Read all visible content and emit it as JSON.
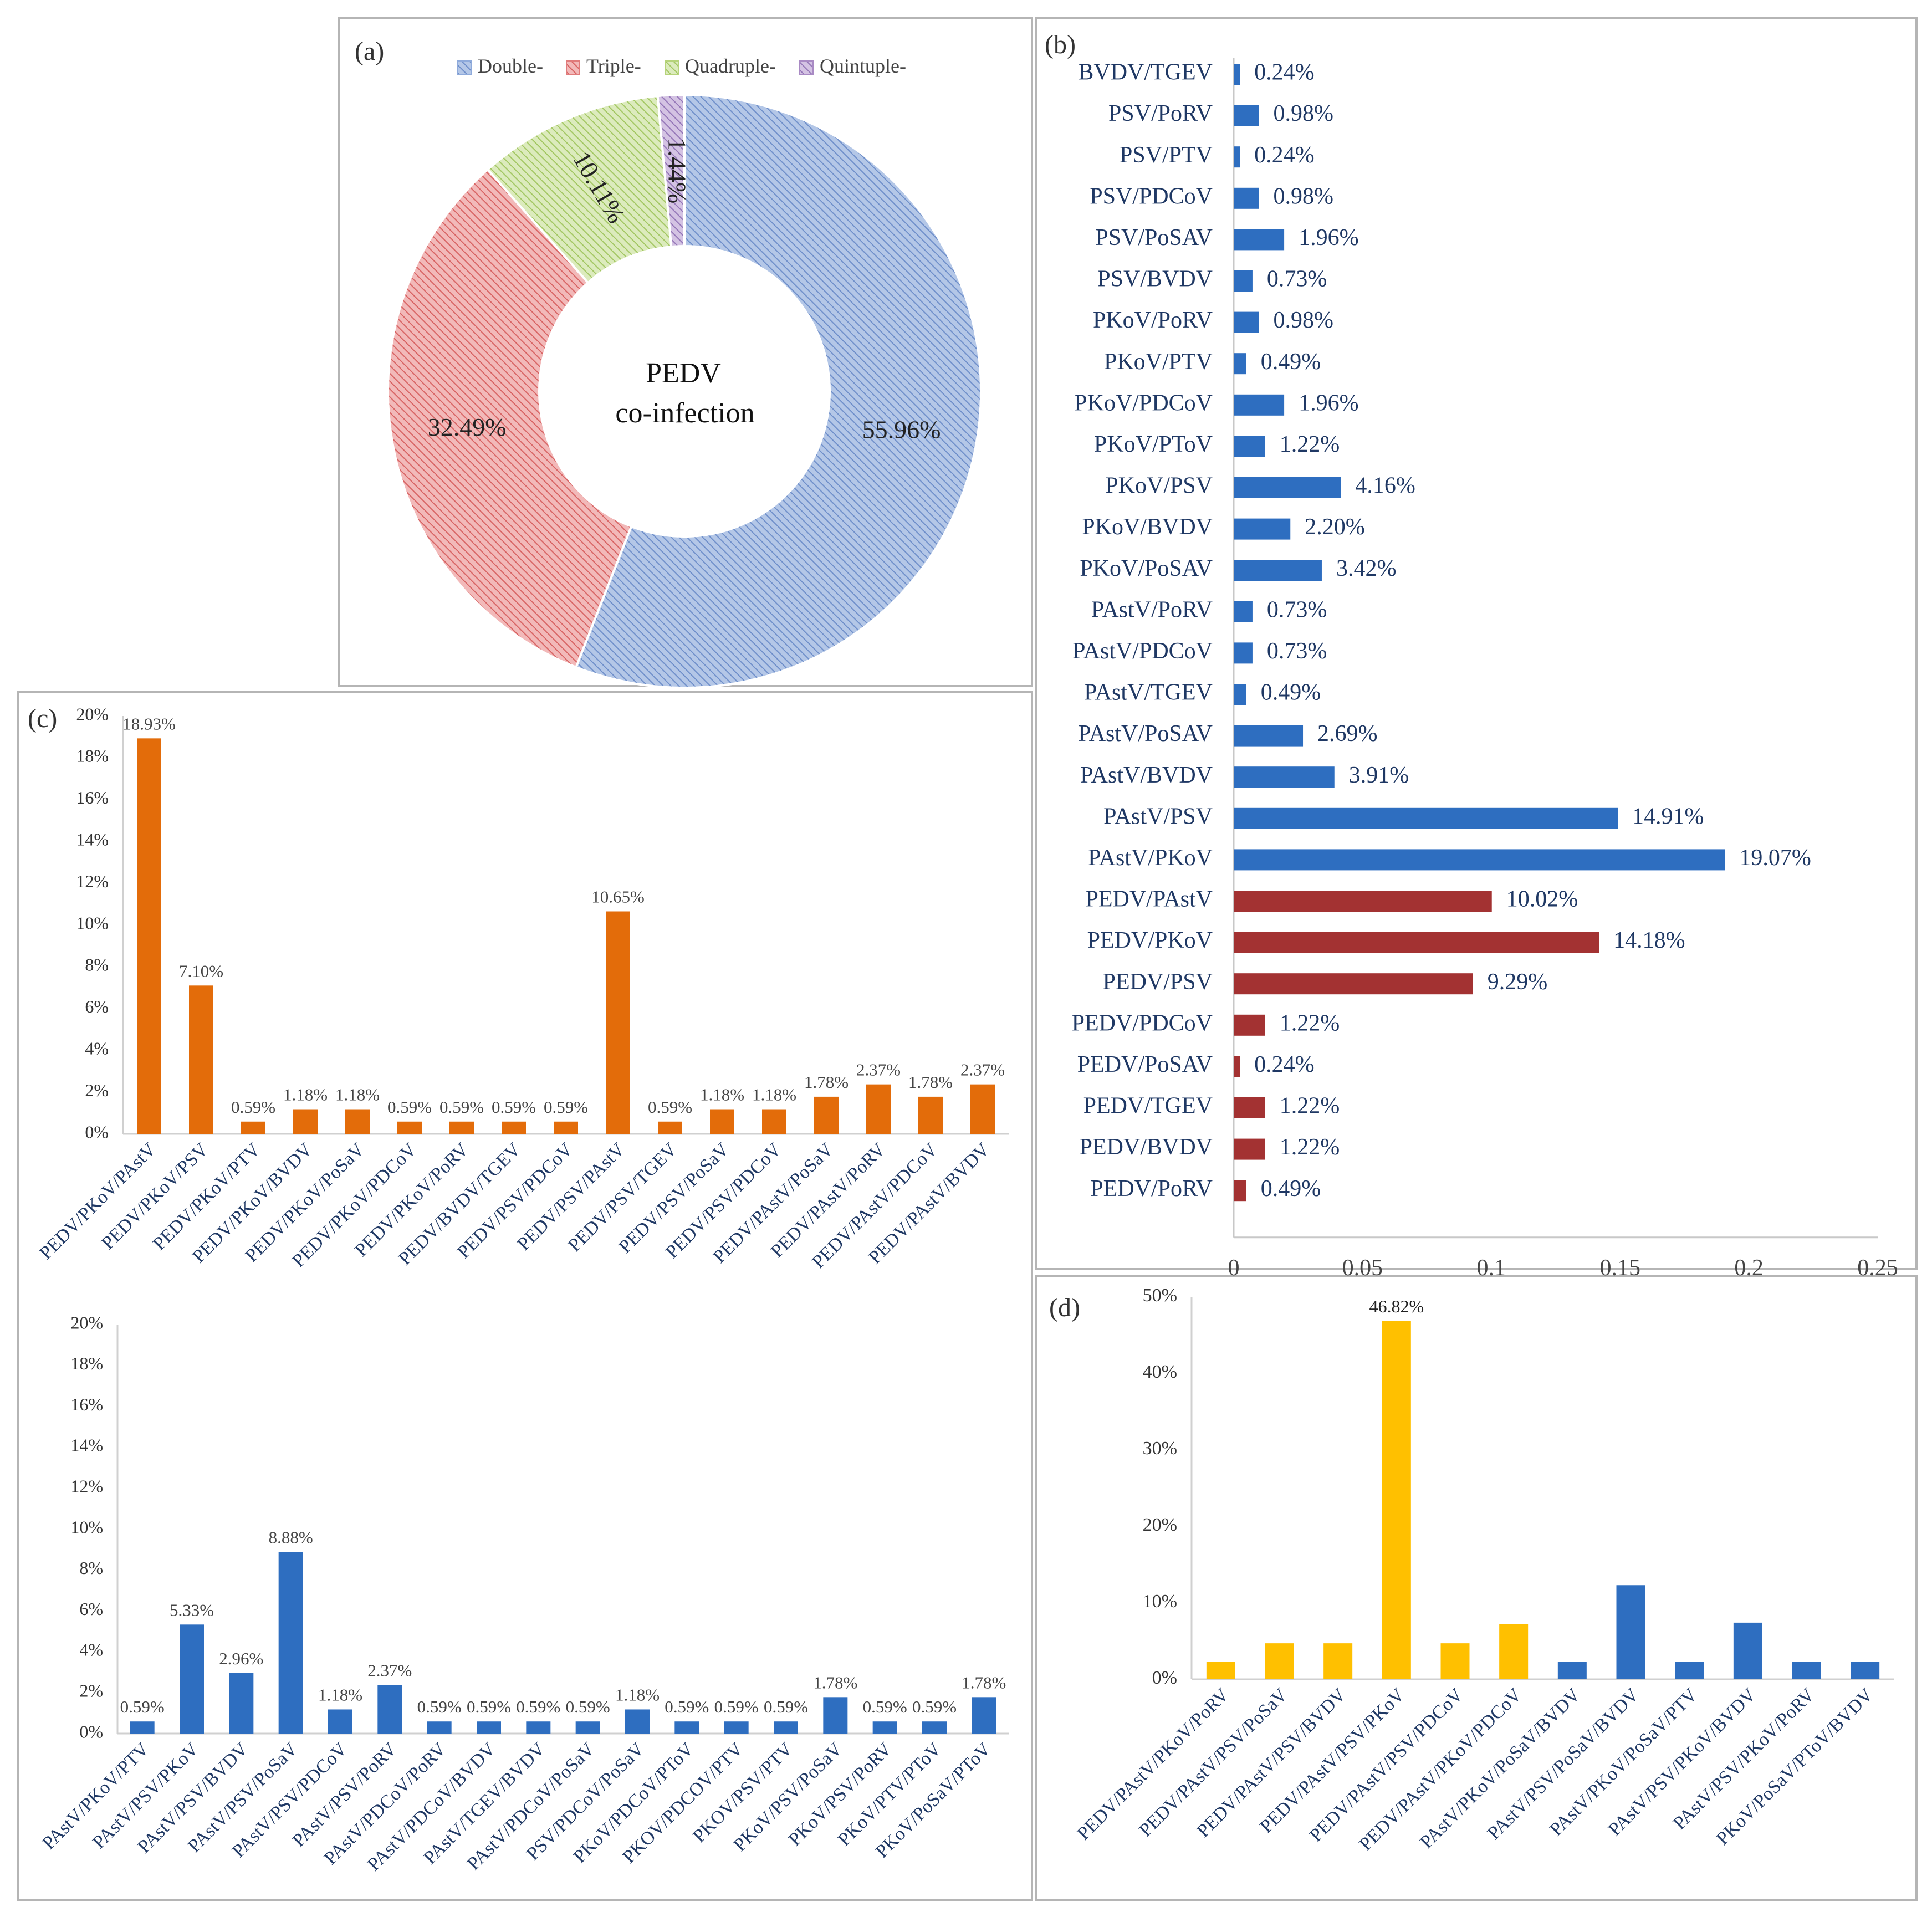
{
  "chart_data": [
    {
      "id": "a",
      "panel_label": "(a)",
      "type": "pie",
      "center_text": [
        "PEDV",
        "co-infection"
      ],
      "legend": [
        "Double-",
        "Triple-",
        "Quadruple-",
        "Quintuple-"
      ],
      "slices": [
        {
          "name": "Double-",
          "value": 55.96,
          "label": "55.96%",
          "color": "#8eaadb"
        },
        {
          "name": "Triple-",
          "value": 32.49,
          "label": "32.49%",
          "color": "#e07b7b"
        },
        {
          "name": "Quadruple-",
          "value": 10.11,
          "label": "10.11%",
          "color": "#b6d37a"
        },
        {
          "name": "Quintuple-",
          "value": 1.44,
          "label": "1.44%",
          "color": "#a98ac4"
        }
      ]
    },
    {
      "id": "b",
      "panel_label": "(b)",
      "type": "bar",
      "orientation": "horizontal",
      "xlim": [
        0,
        0.25
      ],
      "xticks": [
        "0",
        "0.05",
        "0.1",
        "0.15",
        "0.2",
        "0.25"
      ],
      "colors": {
        "blue": "#2e6ec0",
        "red": "#a33232"
      },
      "categories": [
        "BVDV/TGEV",
        "PSV/PoRV",
        "PSV/PTV",
        "PSV/PDCoV",
        "PSV/PoSAV",
        "PSV/BVDV",
        "PKoV/PoRV",
        "PKoV/PTV",
        "PKoV/PDCoV",
        "PKoV/PToV",
        "PKoV/PSV",
        "PKoV/BVDV",
        "PKoV/PoSAV",
        "PAstV/PoRV",
        "PAstV/PDCoV",
        "PAstV/TGEV",
        "PAstV/PoSAV",
        "PAstV/BVDV",
        "PAstV/PSV",
        "PAstV/PKoV",
        "PEDV/PAstV",
        "PEDV/PKoV",
        "PEDV/PSV",
        "PEDV/PDCoV",
        "PEDV/PoSAV",
        "PEDV/TGEV",
        "PEDV/BVDV",
        "PEDV/PoRV"
      ],
      "values": [
        0.0024,
        0.0098,
        0.0024,
        0.0098,
        0.0196,
        0.0073,
        0.0098,
        0.0049,
        0.0196,
        0.0122,
        0.0416,
        0.022,
        0.0342,
        0.0073,
        0.0073,
        0.0049,
        0.0269,
        0.0391,
        0.1491,
        0.1907,
        0.1002,
        0.1418,
        0.0929,
        0.0122,
        0.0024,
        0.0122,
        0.0122,
        0.0049
      ],
      "labels": [
        "0.24%",
        "0.98%",
        "0.24%",
        "0.98%",
        "1.96%",
        "0.73%",
        "0.98%",
        "0.49%",
        "1.96%",
        "1.22%",
        "4.16%",
        "2.20%",
        "3.42%",
        "0.73%",
        "0.73%",
        "0.49%",
        "2.69%",
        "3.91%",
        "14.91%",
        "19.07%",
        "10.02%",
        "14.18%",
        "9.29%",
        "1.22%",
        "0.24%",
        "1.22%",
        "1.22%",
        "0.49%"
      ],
      "group": [
        "b",
        "b",
        "b",
        "b",
        "b",
        "b",
        "b",
        "b",
        "b",
        "b",
        "b",
        "b",
        "b",
        "b",
        "b",
        "b",
        "b",
        "b",
        "b",
        "b",
        "r",
        "r",
        "r",
        "r",
        "r",
        "r",
        "r",
        "r"
      ]
    },
    {
      "id": "c1",
      "panel_label": "(c)",
      "type": "bar",
      "color": "#e36c0a",
      "ylim": [
        0,
        20
      ],
      "yticks": [
        "0%",
        "2%",
        "4%",
        "6%",
        "8%",
        "10%",
        "12%",
        "14%",
        "16%",
        "18%",
        "20%"
      ],
      "categories": [
        "PEDV/PKoV/PAstV",
        "PEDV/PKoV/PSV",
        "PEDV/PKoV/PTV",
        "PEDV/PKoV/BVDV",
        "PEDV/PKoV/PoSaV",
        "PEDV/PKoV/PDCoV",
        "PEDV/PKoV/PoRV",
        "PEDV/BVDV/TGEV",
        "PEDV/PSV/PDCoV",
        "PEDV/PSV/PAstV",
        "PEDV/PSV/TGEV",
        "PEDV/PSV/PoSaV",
        "PEDV/PSV/PDCoV",
        "PEDV/PAstV/PoSaV",
        "PEDV/PAstV/PoRV",
        "PEDV/PAstV/PDCoV",
        "PEDV/PAstV/BVDV"
      ],
      "values": [
        18.93,
        7.1,
        0.59,
        1.18,
        1.18,
        0.59,
        0.59,
        0.59,
        0.59,
        10.65,
        0.59,
        1.18,
        1.18,
        1.78,
        2.37,
        1.78,
        2.37
      ],
      "labels": [
        "18.93%",
        "7.10%",
        "0.59%",
        "1.18%",
        "1.18%",
        "0.59%",
        "0.59%",
        "0.59%",
        "0.59%",
        "10.65%",
        "0.59%",
        "1.18%",
        "1.18%",
        "1.78%",
        "2.37%",
        "1.78%",
        "2.37%"
      ]
    },
    {
      "id": "c2",
      "type": "bar",
      "color": "#2e6ec0",
      "ylim": [
        0,
        20
      ],
      "yticks": [
        "0%",
        "2%",
        "4%",
        "6%",
        "8%",
        "10%",
        "12%",
        "14%",
        "16%",
        "18%",
        "20%"
      ],
      "categories": [
        "PAstV/PKoV/PTV",
        "PAstV/PSV/PKoV",
        "PAstV/PSV/BVDV",
        "PAstV/PSV/PoSaV",
        "PAstV/PSV/PDCoV",
        "PAstV/PSV/PoRV",
        "PAstV/PDCoV/PoRV",
        "PAstV/PDCoV/BVDV",
        "PAstV/TGEV/BVDV",
        "PAstV/PDCoV/PoSaV",
        "PSV/PDCoV/PoSaV",
        "PKoV/PDCoV/PToV",
        "PKOV/PDCOV/PTV",
        "PKOV/PSV/PTV",
        "PKoV/PSV/PoSaV",
        "PKoV/PSV/PoRV",
        "PKoV/PTV/PToV",
        "PKoV/PoSaV/PToV"
      ],
      "values": [
        0.59,
        5.33,
        2.96,
        8.88,
        1.18,
        2.37,
        0.59,
        0.59,
        0.59,
        0.59,
        1.18,
        0.59,
        0.59,
        0.59,
        1.78,
        0.59,
        0.59,
        1.78
      ],
      "labels": [
        "0.59%",
        "5.33%",
        "2.96%",
        "8.88%",
        "1.18%",
        "2.37%",
        "0.59%",
        "0.59%",
        "0.59%",
        "0.59%",
        "1.18%",
        "0.59%",
        "0.59%",
        "0.59%",
        "1.78%",
        "0.59%",
        "0.59%",
        "1.78%"
      ]
    },
    {
      "id": "d",
      "panel_label": "(d)",
      "type": "bar",
      "ylim": [
        0,
        50
      ],
      "yticks": [
        "0%",
        "10%",
        "20%",
        "30%",
        "40%",
        "50%"
      ],
      "colors": {
        "yellow": "#ffc000",
        "blue": "#2e6ec0"
      },
      "categories": [
        "PEDV/PAstV/PKoV/PoRV",
        "PEDV/PAstV/PSV/PoSaV",
        "PEDV/PAstV/PSV/BVDV",
        "PEDV/PAstV/PSV/PKoV",
        "PEDV/PAstV/PSV/PDCoV",
        "PEDV/PAstV/PKoV/PDCoV",
        "PAstV/PKoV/PoSaV/BVDV",
        "PAstV/PSV/PoSaV/BVDV",
        "PAstV/PKoV/PoSaV/PTV",
        "PAstV/PSV/PKoV/BVDV",
        "PAstV/PSV/PKoV/PoRV",
        "PKoV/PoSaV/PToV/BVDV"
      ],
      "values": [
        2.3,
        4.7,
        4.7,
        46.82,
        4.7,
        7.2,
        2.3,
        12.3,
        2.3,
        7.4,
        2.3,
        2.3
      ],
      "labels": [
        "",
        "",
        "",
        "46.82%",
        "",
        "",
        "",
        "",
        "",
        "",
        "",
        ""
      ],
      "group": [
        "y",
        "y",
        "y",
        "y",
        "y",
        "y",
        "b",
        "b",
        "b",
        "b",
        "b",
        "b"
      ]
    }
  ]
}
